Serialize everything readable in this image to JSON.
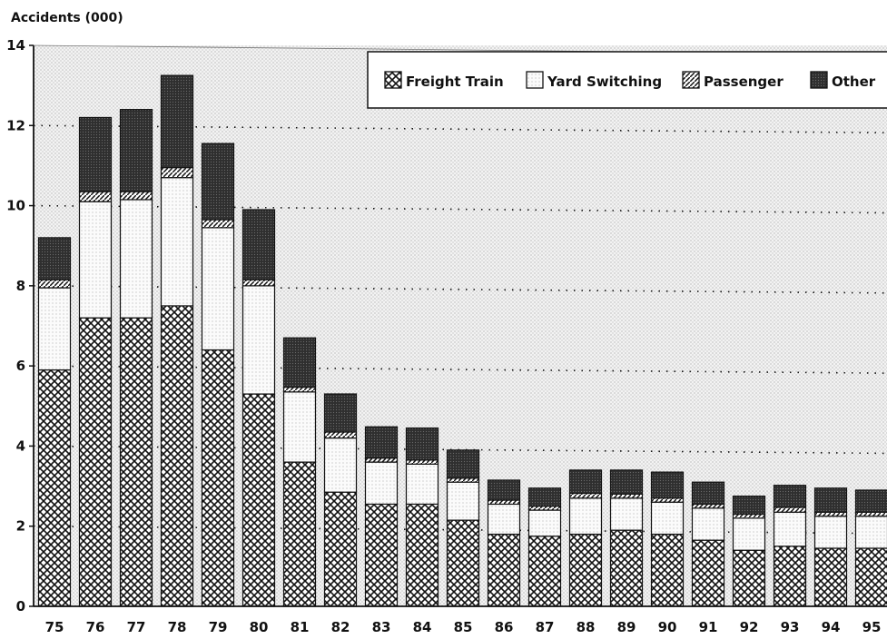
{
  "chart_data": {
    "type": "bar",
    "stacked": true,
    "ylabel": "Accidents (000)",
    "ylim": [
      0,
      14
    ],
    "yticks": [
      "0",
      "2",
      "4",
      "6",
      "8",
      "10",
      "12",
      "14"
    ],
    "categories": [
      "75",
      "76",
      "77",
      "78",
      "79",
      "80",
      "81",
      "82",
      "83",
      "84",
      "85",
      "86",
      "87",
      "88",
      "89",
      "90",
      "91",
      "92",
      "93",
      "94",
      "95"
    ],
    "series": [
      {
        "name": "Freight Train",
        "pattern": "crosshatch",
        "values": [
          5.9,
          7.2,
          7.2,
          7.5,
          6.4,
          5.3,
          3.6,
          2.85,
          2.55,
          2.55,
          2.15,
          1.8,
          1.75,
          1.8,
          1.9,
          1.8,
          1.65,
          1.4,
          1.5,
          1.45,
          1.45
        ]
      },
      {
        "name": "Yard Switching",
        "pattern": "light-dots",
        "values": [
          2.05,
          2.9,
          2.95,
          3.2,
          3.05,
          2.7,
          1.75,
          1.35,
          1.05,
          1.0,
          0.95,
          0.75,
          0.65,
          0.9,
          0.8,
          0.8,
          0.8,
          0.8,
          0.85,
          0.8,
          0.8
        ]
      },
      {
        "name": "Passenger",
        "pattern": "diagonal",
        "values": [
          0.2,
          0.25,
          0.2,
          0.25,
          0.2,
          0.15,
          0.12,
          0.15,
          0.1,
          0.1,
          0.1,
          0.1,
          0.1,
          0.12,
          0.1,
          0.1,
          0.1,
          0.1,
          0.12,
          0.1,
          0.1
        ]
      },
      {
        "name": "Other",
        "pattern": "dark-dots",
        "values": [
          1.05,
          1.85,
          2.05,
          2.3,
          1.9,
          1.75,
          1.23,
          0.95,
          0.78,
          0.8,
          0.7,
          0.5,
          0.45,
          0.58,
          0.6,
          0.65,
          0.55,
          0.45,
          0.55,
          0.6,
          0.55
        ]
      }
    ],
    "grid": "dotted",
    "legend_position": "top-right"
  }
}
